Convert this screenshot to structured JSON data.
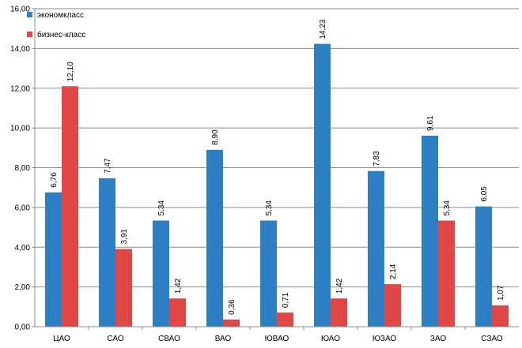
{
  "chart_data": {
    "type": "bar",
    "categories": [
      "ЦАО",
      "САО",
      "СВАО",
      "ВАО",
      "ЮВАО",
      "ЮАО",
      "ЮЗАО",
      "ЗАО",
      "СЗАО"
    ],
    "series": [
      {
        "name": "экономкласс",
        "color": "#2E7EC3",
        "values": [
          6.76,
          7.47,
          5.34,
          8.9,
          5.34,
          14.23,
          7.83,
          9.61,
          6.05
        ],
        "labels": [
          "6,76",
          "7,47",
          "5,34",
          "8,90",
          "5,34",
          "14,23",
          "7,83",
          "9,61",
          "6,05"
        ]
      },
      {
        "name": "бизнес-класс",
        "color": "#E04848",
        "values": [
          12.1,
          3.91,
          1.42,
          0.36,
          0.71,
          1.42,
          2.14,
          5.34,
          1.07
        ],
        "labels": [
          "12,10",
          "3,91",
          "1,42",
          "0,36",
          "0,71",
          "1,42",
          "2,14",
          "5,34",
          "1,07"
        ]
      }
    ],
    "ylim": [
      0,
      16
    ],
    "yticks": [
      0,
      2,
      4,
      6,
      8,
      10,
      12,
      14,
      16
    ],
    "ytick_labels": [
      "0,00",
      "2,00",
      "4,00",
      "6,00",
      "8,00",
      "10,00",
      "12,00",
      "14,00",
      "16,00"
    ],
    "grid": true,
    "legend_position": "top-left",
    "title": "",
    "xlabel": "",
    "ylabel": ""
  }
}
